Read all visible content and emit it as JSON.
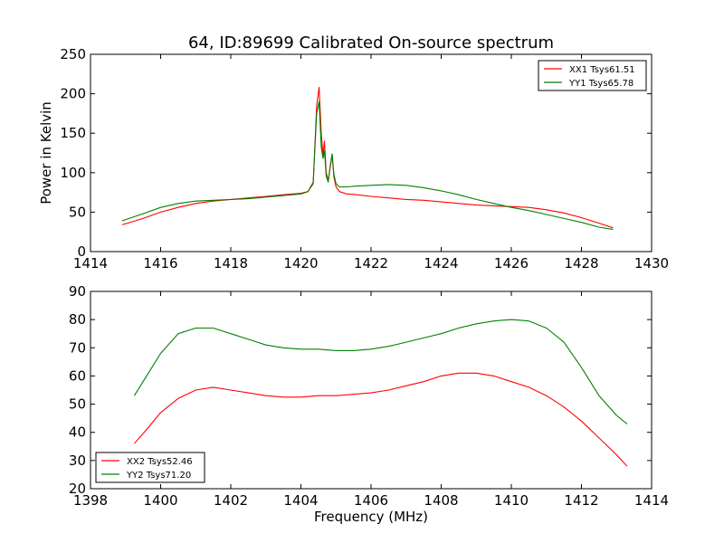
{
  "figure": {
    "title": "64, ID:89699 Calibrated On-source spectrum"
  },
  "chart_data": [
    {
      "type": "line",
      "title": "64, ID:89699 Calibrated On-source spectrum",
      "xlabel": "",
      "ylabel": "Power in Kelvin",
      "xlim": [
        1414,
        1430
      ],
      "ylim": [
        0,
        250
      ],
      "xticks": [
        "1414",
        "1416",
        "1418",
        "1420",
        "1422",
        "1424",
        "1426",
        "1428",
        "1430"
      ],
      "yticks": [
        "0",
        "50",
        "100",
        "150",
        "200",
        "250"
      ],
      "grid": false,
      "legend_position": "top-right",
      "series": [
        {
          "name": "XX1 Tsys61.51",
          "color": "#ff0000",
          "x": [
            1414.9,
            1415.5,
            1416,
            1416.5,
            1417,
            1417.5,
            1418,
            1418.5,
            1419,
            1419.5,
            1420,
            1420.2,
            1420.35,
            1420.45,
            1420.52,
            1420.58,
            1420.63,
            1420.67,
            1420.72,
            1420.78,
            1420.84,
            1420.89,
            1420.94,
            1421.0,
            1421.1,
            1421.3,
            1421.6,
            1422,
            1422.5,
            1423,
            1423.5,
            1424,
            1424.5,
            1425,
            1425.5,
            1426,
            1426.5,
            1427,
            1427.5,
            1428,
            1428.5,
            1428.9
          ],
          "values": [
            34,
            42,
            50,
            56,
            61,
            64,
            66,
            68,
            70,
            72,
            74,
            76,
            86,
            185,
            208,
            150,
            122,
            140,
            100,
            90,
            108,
            122,
            95,
            82,
            76,
            73,
            72,
            70,
            68,
            66,
            65,
            63,
            61,
            59,
            58,
            57,
            56,
            53,
            49,
            43,
            36,
            30
          ]
        },
        {
          "name": "YY1 Tsys65.78",
          "color": "#008000",
          "x": [
            1414.9,
            1415.5,
            1416,
            1416.5,
            1417,
            1417.5,
            1418,
            1418.5,
            1419,
            1419.5,
            1420,
            1420.2,
            1420.35,
            1420.45,
            1420.52,
            1420.58,
            1420.63,
            1420.67,
            1420.72,
            1420.78,
            1420.84,
            1420.89,
            1420.94,
            1421.0,
            1421.1,
            1421.3,
            1421.6,
            1422,
            1422.5,
            1423,
            1423.5,
            1424,
            1424.5,
            1425,
            1425.5,
            1426,
            1426.5,
            1427,
            1427.5,
            1428,
            1428.5,
            1428.9
          ],
          "values": [
            39,
            48,
            56,
            61,
            64,
            65,
            66,
            67,
            69,
            71,
            73,
            76,
            88,
            175,
            190,
            132,
            118,
            128,
            96,
            88,
            110,
            124,
            98,
            86,
            82,
            82,
            83,
            84,
            85,
            84,
            81,
            77,
            72,
            66,
            61,
            56,
            52,
            47,
            42,
            37,
            31,
            28
          ]
        }
      ]
    },
    {
      "type": "line",
      "title": "",
      "xlabel": "Frequency (MHz)",
      "ylabel": "",
      "xlim": [
        1398,
        1414
      ],
      "ylim": [
        20,
        90
      ],
      "xticks": [
        "1398",
        "1400",
        "1402",
        "1404",
        "1406",
        "1408",
        "1410",
        "1412",
        "1414"
      ],
      "yticks": [
        "20",
        "30",
        "40",
        "50",
        "60",
        "70",
        "80",
        "90"
      ],
      "grid": false,
      "legend_position": "bottom-left",
      "series": [
        {
          "name": "XX2 Tsys52.46",
          "color": "#ff0000",
          "x": [
            1399.25,
            1399.6,
            1400,
            1400.5,
            1401,
            1401.5,
            1402,
            1402.5,
            1403,
            1403.5,
            1404,
            1404.5,
            1405,
            1405.5,
            1406,
            1406.5,
            1407,
            1407.5,
            1408,
            1408.5,
            1409,
            1409.5,
            1410,
            1410.5,
            1411,
            1411.5,
            1412,
            1412.5,
            1413,
            1413.3
          ],
          "values": [
            36,
            41,
            47,
            52,
            55,
            56,
            55,
            54,
            53,
            52.5,
            52.5,
            53,
            53,
            53.5,
            54,
            55,
            56.5,
            58,
            60,
            61,
            61,
            60,
            58,
            56,
            53,
            49,
            44,
            38,
            32,
            28
          ]
        },
        {
          "name": "YY2 Tsys71.20",
          "color": "#008000",
          "x": [
            1399.25,
            1399.6,
            1400,
            1400.5,
            1401,
            1401.5,
            1402,
            1402.5,
            1403,
            1403.5,
            1404,
            1404.5,
            1405,
            1405.5,
            1406,
            1406.5,
            1407,
            1407.5,
            1408,
            1408.5,
            1409,
            1409.5,
            1410,
            1410.5,
            1411,
            1411.5,
            1412,
            1412.5,
            1413,
            1413.3
          ],
          "values": [
            53,
            60,
            68,
            75,
            77,
            77,
            75,
            73,
            71,
            70,
            69.5,
            69.5,
            69,
            69,
            69.5,
            70.5,
            72,
            73.5,
            75,
            77,
            78.5,
            79.5,
            80,
            79.5,
            77,
            72,
            63,
            53,
            46,
            43
          ]
        }
      ]
    }
  ]
}
